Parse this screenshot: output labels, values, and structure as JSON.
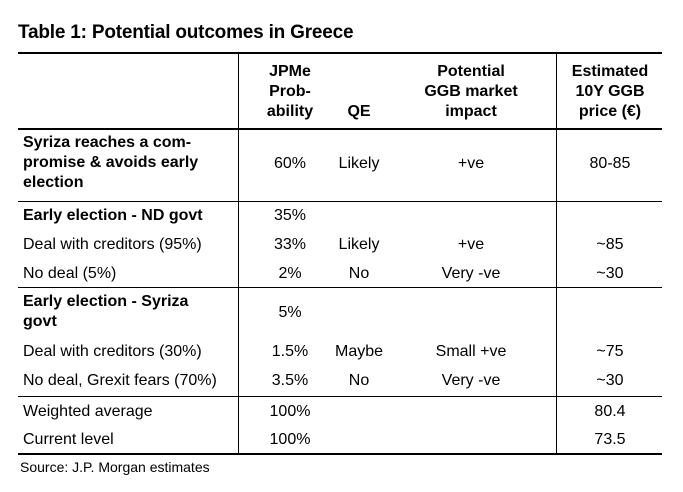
{
  "title": "Table 1: Potential outcomes in Greece",
  "headers": {
    "col1": [
      "JPMe",
      "Prob-",
      "ability"
    ],
    "col2": [
      "QE"
    ],
    "col3": [
      "Potential",
      "GGB market",
      "impact"
    ],
    "col4": [
      "Estimated",
      "10Y GGB",
      "price (€)"
    ]
  },
  "rows": {
    "syriza_comp": {
      "label": [
        "Syriza reaches a com-",
        "promise & avoids early",
        "election"
      ],
      "prob": "60%",
      "qe": "Likely",
      "impact": "+ve",
      "price": "80-85"
    },
    "nd_govt": {
      "label": "Early election - ND govt",
      "prob": "35%"
    },
    "nd_deal": {
      "label": "Deal with creditors (95%)",
      "prob": "33%",
      "qe": "Likely",
      "impact": "+ve",
      "price": "~85"
    },
    "nd_nodeal": {
      "label": "No deal (5%)",
      "prob": "2%",
      "qe": "No",
      "impact": "Very -ve",
      "price": "~30"
    },
    "syriza_govt": {
      "label": [
        "Early election - Syriza",
        "govt"
      ],
      "prob": "5%"
    },
    "sy_deal": {
      "label": "Deal with creditors (30%)",
      "prob": "1.5%",
      "qe": "Maybe",
      "impact": "Small +ve",
      "price": "~75"
    },
    "sy_nodeal": {
      "label": "No deal, Grexit fears (70%)",
      "prob": "3.5%",
      "qe": "No",
      "impact": "Very -ve",
      "price": "~30"
    },
    "weighted": {
      "label": "Weighted average",
      "prob": "100%",
      "price": "80.4"
    },
    "current": {
      "label": "Current level",
      "prob": "100%",
      "price": "73.5"
    }
  },
  "source": "Source: J.P. Morgan estimates"
}
